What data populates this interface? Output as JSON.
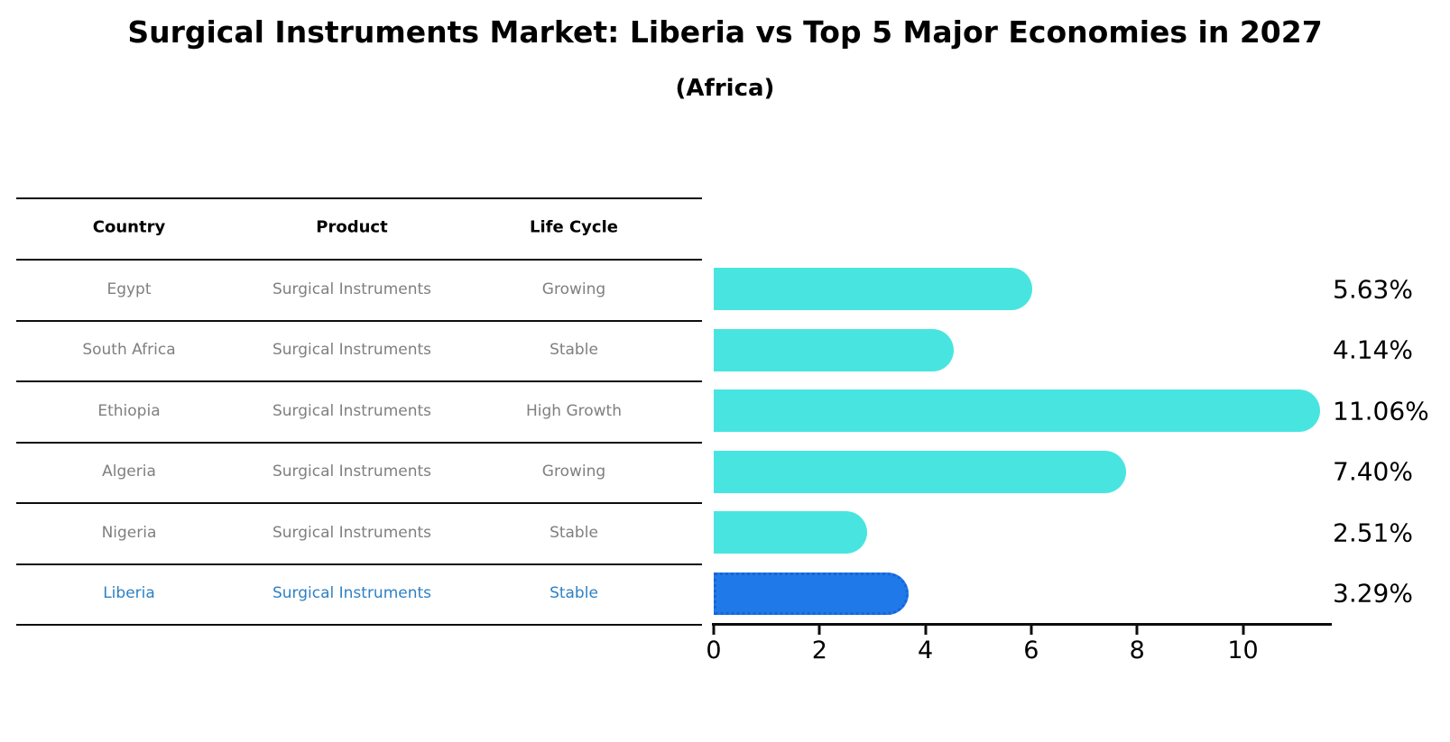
{
  "title": "Surgical Instruments Market: Liberia vs Top 5 Major Economies in 2027",
  "subtitle": "(Africa)",
  "table": {
    "columns": [
      "Country",
      "Product",
      "Life Cycle"
    ]
  },
  "chart_data": {
    "type": "bar",
    "orientation": "horizontal",
    "xlabel": "",
    "ylabel": "",
    "xlim": [
      0,
      11.7
    ],
    "xticks": [
      0,
      2,
      4,
      6,
      8,
      10
    ],
    "grid": false,
    "legend": "none",
    "value_format": "percent",
    "rows": [
      {
        "country": "Egypt",
        "product": "Surgical Instruments",
        "life_cycle": "Growing",
        "value": 5.63,
        "label": "5.63%",
        "highlight": false
      },
      {
        "country": "South Africa",
        "product": "Surgical Instruments",
        "life_cycle": "Stable",
        "value": 4.14,
        "label": "4.14%",
        "highlight": false
      },
      {
        "country": "Ethiopia",
        "product": "Surgical Instruments",
        "life_cycle": "High Growth",
        "value": 11.06,
        "label": "11.06%",
        "highlight": false
      },
      {
        "country": "Algeria",
        "product": "Surgical Instruments",
        "life_cycle": "Growing",
        "value": 7.4,
        "label": "7.40%",
        "highlight": false
      },
      {
        "country": "Nigeria",
        "product": "Surgical Instruments",
        "life_cycle": "Stable",
        "value": 2.51,
        "label": "2.51%",
        "highlight": false
      },
      {
        "country": "Liberia",
        "product": "Surgical Instruments",
        "life_cycle": "Stable",
        "value": 3.29,
        "label": "3.29%",
        "highlight": true
      }
    ],
    "colors": {
      "bar": "#48E5E0",
      "highlight_bar": "#2079E8",
      "highlight_bar_border": "#1565DB",
      "highlight_text": "#2E81C4",
      "row_text": "#7F7F7F",
      "axis": "#0D0D0D"
    }
  }
}
